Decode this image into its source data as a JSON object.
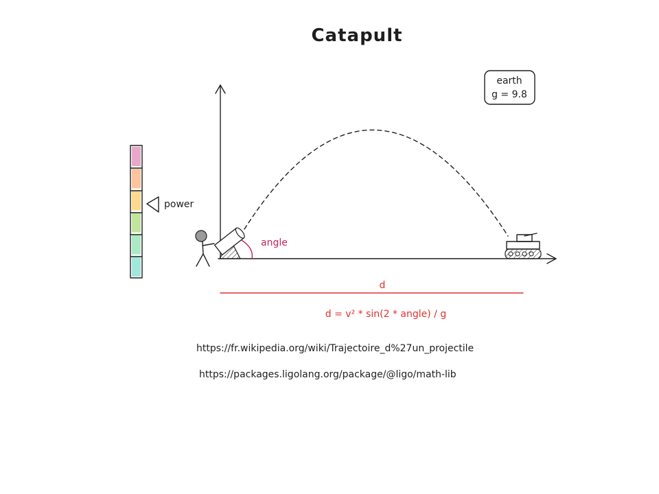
{
  "title": "Catapult",
  "gravity_box": {
    "planet": "earth",
    "formula": "g = 9.8"
  },
  "labels": {
    "power": "power",
    "angle": "angle",
    "distance": "d",
    "formula": "d = v² * sin(2 * angle) / g"
  },
  "power_bar": {
    "segment_colors": [
      "#e599c1",
      "#ffb88c",
      "#ffd27a",
      "#b7e08a",
      "#9ee6b8",
      "#8fe3d6"
    ]
  },
  "links": [
    "https://fr.wikipedia.org/wiki/Trajectoire_d%27un_projectile",
    "https://packages.ligolang.org/package/@ligo/math-lib"
  ],
  "colors": {
    "ink": "#1e1e1e",
    "angle": "#c2255c",
    "distance": "#e03131"
  }
}
